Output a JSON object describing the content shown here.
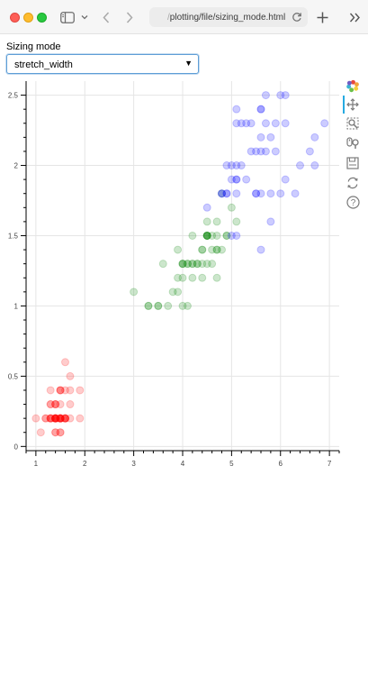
{
  "browser": {
    "url_prefix": "/",
    "url_path": "plotting/file/sizing_mode.html"
  },
  "controls": {
    "sizing_label": "Sizing mode",
    "sizing_value": "stretch_width"
  },
  "bokeh_tools": [
    "bokeh-logo-icon",
    "pan-icon",
    "box-zoom-icon",
    "wheel-zoom-icon",
    "save-icon",
    "reset-icon",
    "help-icon"
  ],
  "colors": {
    "setosa": "#ff0000",
    "versicolor": "#008000",
    "virginica": "#0000ff",
    "accent": "#26aae1"
  },
  "chart_data": {
    "type": "scatter",
    "title": "",
    "xlabel": "",
    "ylabel": "",
    "xlim": [
      0.8,
      7.2
    ],
    "ylim": [
      -0.03,
      2.6
    ],
    "xticks": [
      "1",
      "2",
      "3",
      "4",
      "5",
      "6",
      "7"
    ],
    "yticks": [
      "0",
      "0.5",
      "1",
      "1.5",
      "2",
      "2.5"
    ],
    "grid": true,
    "legend": "none",
    "series": [
      {
        "color": "#ff0000",
        "points": [
          [
            1.4,
            0.2
          ],
          [
            1.4,
            0.2
          ],
          [
            1.3,
            0.2
          ],
          [
            1.5,
            0.2
          ],
          [
            1.4,
            0.2
          ],
          [
            1.7,
            0.4
          ],
          [
            1.4,
            0.3
          ],
          [
            1.5,
            0.2
          ],
          [
            1.4,
            0.2
          ],
          [
            1.5,
            0.1
          ],
          [
            1.5,
            0.2
          ],
          [
            1.6,
            0.2
          ],
          [
            1.4,
            0.1
          ],
          [
            1.1,
            0.1
          ],
          [
            1.2,
            0.2
          ],
          [
            1.5,
            0.4
          ],
          [
            1.3,
            0.4
          ],
          [
            1.4,
            0.3
          ],
          [
            1.7,
            0.3
          ],
          [
            1.5,
            0.3
          ],
          [
            1.7,
            0.2
          ],
          [
            1.5,
            0.4
          ],
          [
            1.0,
            0.2
          ],
          [
            1.7,
            0.5
          ],
          [
            1.9,
            0.2
          ],
          [
            1.6,
            0.2
          ],
          [
            1.6,
            0.4
          ],
          [
            1.5,
            0.2
          ],
          [
            1.4,
            0.2
          ],
          [
            1.6,
            0.2
          ],
          [
            1.6,
            0.2
          ],
          [
            1.5,
            0.4
          ],
          [
            1.5,
            0.1
          ],
          [
            1.4,
            0.2
          ],
          [
            1.5,
            0.2
          ],
          [
            1.2,
            0.2
          ],
          [
            1.3,
            0.2
          ],
          [
            1.4,
            0.1
          ],
          [
            1.3,
            0.2
          ],
          [
            1.5,
            0.2
          ],
          [
            1.3,
            0.3
          ],
          [
            1.3,
            0.3
          ],
          [
            1.3,
            0.2
          ],
          [
            1.6,
            0.6
          ],
          [
            1.9,
            0.4
          ],
          [
            1.4,
            0.3
          ],
          [
            1.6,
            0.2
          ],
          [
            1.4,
            0.2
          ],
          [
            1.5,
            0.2
          ],
          [
            1.4,
            0.2
          ]
        ]
      },
      {
        "color": "#008000",
        "points": [
          [
            4.7,
            1.4
          ],
          [
            4.5,
            1.5
          ],
          [
            4.9,
            1.5
          ],
          [
            4.0,
            1.3
          ],
          [
            4.6,
            1.5
          ],
          [
            4.5,
            1.3
          ],
          [
            4.7,
            1.6
          ],
          [
            3.3,
            1.0
          ],
          [
            4.6,
            1.3
          ],
          [
            3.9,
            1.4
          ],
          [
            3.5,
            1.0
          ],
          [
            4.2,
            1.5
          ],
          [
            4.0,
            1.0
          ],
          [
            4.7,
            1.4
          ],
          [
            3.6,
            1.3
          ],
          [
            4.4,
            1.4
          ],
          [
            4.5,
            1.5
          ],
          [
            4.1,
            1.0
          ],
          [
            4.5,
            1.5
          ],
          [
            3.9,
            1.1
          ],
          [
            4.8,
            1.8
          ],
          [
            4.0,
            1.3
          ],
          [
            4.9,
            1.5
          ],
          [
            4.7,
            1.2
          ],
          [
            4.3,
            1.3
          ],
          [
            4.4,
            1.4
          ],
          [
            4.8,
            1.4
          ],
          [
            5.0,
            1.7
          ],
          [
            4.5,
            1.5
          ],
          [
            3.5,
            1.0
          ],
          [
            3.8,
            1.1
          ],
          [
            3.7,
            1.0
          ],
          [
            3.9,
            1.2
          ],
          [
            5.1,
            1.6
          ],
          [
            4.5,
            1.5
          ],
          [
            4.5,
            1.6
          ],
          [
            4.7,
            1.5
          ],
          [
            4.4,
            1.3
          ],
          [
            4.1,
            1.3
          ],
          [
            4.0,
            1.3
          ],
          [
            4.4,
            1.2
          ],
          [
            4.6,
            1.4
          ],
          [
            4.0,
            1.2
          ],
          [
            3.3,
            1.0
          ],
          [
            4.2,
            1.3
          ],
          [
            4.2,
            1.2
          ],
          [
            4.2,
            1.3
          ],
          [
            4.3,
            1.3
          ],
          [
            3.0,
            1.1
          ],
          [
            4.1,
            1.3
          ]
        ]
      },
      {
        "color": "#0000ff",
        "points": [
          [
            6.0,
            2.5
          ],
          [
            5.1,
            1.9
          ],
          [
            5.9,
            2.1
          ],
          [
            5.6,
            1.8
          ],
          [
            5.8,
            2.2
          ],
          [
            6.6,
            2.1
          ],
          [
            4.5,
            1.7
          ],
          [
            6.3,
            1.8
          ],
          [
            5.8,
            1.8
          ],
          [
            6.1,
            2.5
          ],
          [
            5.1,
            2.0
          ],
          [
            5.3,
            1.9
          ],
          [
            5.5,
            2.1
          ],
          [
            5.0,
            2.0
          ],
          [
            5.1,
            2.4
          ],
          [
            5.3,
            2.3
          ],
          [
            5.5,
            1.8
          ],
          [
            6.7,
            2.2
          ],
          [
            6.9,
            2.3
          ],
          [
            5.0,
            1.5
          ],
          [
            5.7,
            2.3
          ],
          [
            4.9,
            2.0
          ],
          [
            6.7,
            2.0
          ],
          [
            4.9,
            1.8
          ],
          [
            5.7,
            2.1
          ],
          [
            6.0,
            1.8
          ],
          [
            4.8,
            1.8
          ],
          [
            4.9,
            1.8
          ],
          [
            5.6,
            2.1
          ],
          [
            5.8,
            1.6
          ],
          [
            6.1,
            1.9
          ],
          [
            6.4,
            2.0
          ],
          [
            5.6,
            2.2
          ],
          [
            5.1,
            1.5
          ],
          [
            5.6,
            1.4
          ],
          [
            6.1,
            2.3
          ],
          [
            5.6,
            2.4
          ],
          [
            5.5,
            1.8
          ],
          [
            4.8,
            1.8
          ],
          [
            5.4,
            2.1
          ],
          [
            5.6,
            2.4
          ],
          [
            5.1,
            2.3
          ],
          [
            5.1,
            1.9
          ],
          [
            5.9,
            2.3
          ],
          [
            5.7,
            2.5
          ],
          [
            5.2,
            2.3
          ],
          [
            5.0,
            1.9
          ],
          [
            5.2,
            2.0
          ],
          [
            5.4,
            2.3
          ],
          [
            5.1,
            1.8
          ]
        ]
      }
    ]
  }
}
